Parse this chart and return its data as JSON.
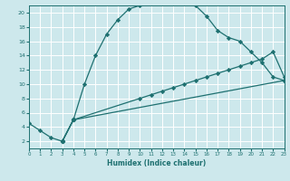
{
  "xlabel": "Humidex (Indice chaleur)",
  "bg_color": "#cde8ec",
  "grid_color": "#ffffff",
  "line_color": "#1e7070",
  "xlim": [
    0,
    23
  ],
  "ylim": [
    1,
    21
  ],
  "xticks": [
    0,
    1,
    2,
    3,
    4,
    5,
    6,
    7,
    8,
    9,
    10,
    11,
    12,
    13,
    14,
    15,
    16,
    17,
    18,
    19,
    20,
    21,
    22,
    23
  ],
  "yticks": [
    2,
    4,
    6,
    8,
    10,
    12,
    14,
    16,
    18,
    20
  ],
  "line1_x": [
    0,
    1,
    2,
    3,
    4,
    5,
    6,
    7,
    8,
    9,
    10,
    11,
    12,
    13,
    14,
    15,
    16,
    17,
    18,
    19,
    20,
    21,
    22,
    23
  ],
  "line1_y": [
    4.5,
    3.5,
    2.5,
    2.0,
    5.0,
    10.0,
    14.0,
    17.0,
    19.0,
    20.5,
    21.0,
    21.2,
    21.3,
    21.3,
    21.2,
    21.0,
    19.5,
    17.5,
    16.5,
    16.0,
    14.5,
    13.0,
    11.0,
    10.5
  ],
  "line2_x": [
    3,
    4,
    10,
    11,
    12,
    13,
    14,
    15,
    16,
    17,
    18,
    19,
    20,
    21,
    22,
    23
  ],
  "line2_y": [
    2.0,
    5.0,
    8.0,
    8.5,
    9.0,
    9.5,
    10.0,
    10.5,
    11.0,
    11.5,
    12.0,
    12.5,
    13.0,
    13.5,
    14.5,
    11.0
  ],
  "line3_x": [
    3,
    4,
    23
  ],
  "line3_y": [
    2.0,
    5.0,
    10.5
  ]
}
